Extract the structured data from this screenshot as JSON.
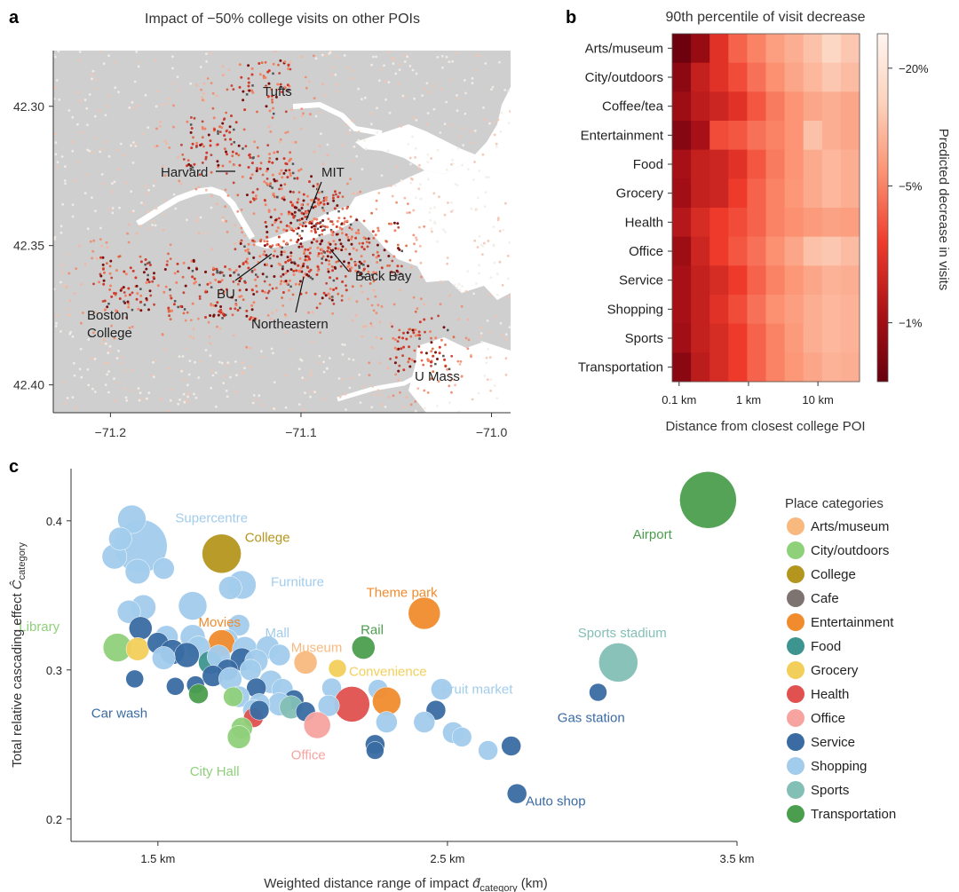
{
  "panels": {
    "a": {
      "letter": "a",
      "title": "Impact of −50% college visits on other POIs",
      "x_ticks": [
        "−71.2",
        "−71.1",
        "−71.0"
      ],
      "y_ticks": [
        "42.40",
        "42.35",
        "42.30"
      ],
      "labels": [
        "Tufts",
        "Harvard",
        "MIT",
        "BU",
        "Back Bay",
        "Northeastern",
        "Boston",
        "College",
        "U Mass"
      ]
    },
    "b": {
      "letter": "b",
      "title": "90th percentile of visit decrease",
      "xlabel": "Distance from closest college POI",
      "colorbar_label": "Predicted decrease in visits"
    },
    "c": {
      "letter": "c",
      "ylabel_main": "Total relative cascading effect ",
      "ylabel_sym": "Ĉ",
      "ylabel_sub": "category",
      "xlabel_main": "Weighted distance range of impact ",
      "xlabel_sym": "d̂",
      "xlabel_sub": "category",
      "xlabel_unit": " (km)",
      "legend_title": "Place categories"
    }
  },
  "chart_data": [
    {
      "type": "scatter",
      "panel": "a",
      "description_free": true,
      "xlim": [
        -71.23,
        -70.99
      ],
      "ylim": [
        42.29,
        42.42
      ],
      "x_ticks": [
        -71.2,
        -71.1,
        -71.0
      ],
      "y_ticks": [
        42.3,
        42.35,
        42.4
      ],
      "places": [
        {
          "name": "Tufts",
          "lon": -71.12,
          "lat": 42.407
        },
        {
          "name": "Harvard",
          "lon": -71.118,
          "lat": 42.374
        },
        {
          "name": "MIT",
          "lon": -71.093,
          "lat": 42.36
        },
        {
          "name": "BU",
          "lon": -71.105,
          "lat": 42.35
        },
        {
          "name": "Back Bay",
          "lon": -71.081,
          "lat": 42.35
        },
        {
          "name": "Northeastern",
          "lon": -71.09,
          "lat": 42.34
        },
        {
          "name": "Boston College",
          "lon": -71.168,
          "lat": 42.336
        },
        {
          "name": "U Mass",
          "lon": -71.038,
          "lat": 42.314
        }
      ]
    },
    {
      "type": "heatmap",
      "panel": "b",
      "rows": [
        "Arts/museum",
        "City/outdoors",
        "Coffee/tea",
        "Entertainment",
        "Food",
        "Grocery",
        "Health",
        "Office",
        "Service",
        "Shopping",
        "Sports",
        "Transportation"
      ],
      "x_ticks": [
        "0.1 km",
        "1 km",
        "10 km"
      ],
      "x_tick_log10": [
        -1,
        0,
        1
      ],
      "x_log_range": [
        -1.1,
        1.6
      ],
      "scale": "log",
      "colorbar_ticks": [
        "−1%",
        "−5%",
        "−20%"
      ],
      "colorbar_values": [
        1,
        5,
        20
      ],
      "colorbar_range": [
        0.5,
        30
      ],
      "values": [
        [
          28,
          17,
          7,
          4,
          3,
          2.2,
          1.8,
          1.4,
          1.0,
          1.3
        ],
        [
          19,
          10,
          7,
          5,
          3.5,
          2.6,
          2.0,
          1.6,
          1.3,
          1.5
        ],
        [
          16,
          11,
          9,
          7,
          4.5,
          3.2,
          2.5,
          2.0,
          1.8,
          2.0
        ],
        [
          21,
          14,
          5,
          4.5,
          3.5,
          3.0,
          2.5,
          1.4,
          1.8,
          2.0
        ],
        [
          14,
          10,
          9,
          7,
          4.5,
          3.2,
          2.5,
          1.9,
          1.6,
          1.8
        ],
        [
          15,
          10,
          9,
          6,
          4,
          3.0,
          2.4,
          1.9,
          1.6,
          1.8
        ],
        [
          12,
          8,
          6,
          5,
          4,
          3.0,
          2.6,
          2.3,
          2.1,
          2.2
        ],
        [
          16,
          9,
          6,
          4.5,
          3.5,
          2.6,
          2.0,
          1.4,
          1.3,
          1.5
        ],
        [
          14,
          10,
          8,
          6,
          4,
          3.0,
          2.4,
          2.0,
          1.7,
          1.8
        ],
        [
          14,
          10,
          7,
          5,
          3.5,
          2.6,
          2.2,
          1.8,
          1.6,
          1.7
        ],
        [
          15,
          10,
          8,
          6,
          4,
          3.0,
          2.3,
          1.8,
          1.6,
          1.7
        ],
        [
          20,
          11,
          8,
          6,
          4,
          3.0,
          2.4,
          2.0,
          1.7,
          1.8
        ]
      ]
    },
    {
      "type": "scatter",
      "panel": "c",
      "xlim": [
        1.2,
        3.5
      ],
      "ylim": [
        0.185,
        0.435
      ],
      "x_ticks": [
        1.5,
        2.5,
        3.5
      ],
      "x_tick_labels": [
        "1.5 km",
        "2.5 km",
        "3.5 km"
      ],
      "y_ticks": [
        0.2,
        0.3,
        0.4
      ],
      "y_tick_labels": [
        "0.2",
        "0.3",
        "0.4"
      ],
      "categories": [
        {
          "name": "Arts/museum",
          "color": "#F8B87E"
        },
        {
          "name": "City/outdoors",
          "color": "#8FD07A"
        },
        {
          "name": "College",
          "color": "#B4961E"
        },
        {
          "name": "Cafe",
          "color": "#7D7370"
        },
        {
          "name": "Entertainment",
          "color": "#F08C2E"
        },
        {
          "name": "Food",
          "color": "#3E958F"
        },
        {
          "name": "Grocery",
          "color": "#F2CF5A"
        },
        {
          "name": "Health",
          "color": "#E0514F"
        },
        {
          "name": "Office",
          "color": "#F7A3A0"
        },
        {
          "name": "Service",
          "color": "#3A6BA3"
        },
        {
          "name": "Shopping",
          "color": "#A2CCEC"
        },
        {
          "name": "Sports",
          "color": "#83BFB5"
        },
        {
          "name": "Transportation",
          "color": "#4B9E4D"
        }
      ],
      "labels": [
        {
          "text": "Supercentre",
          "x": 1.56,
          "y": 0.402,
          "color": "#A2CCEC"
        },
        {
          "text": "College",
          "x": 1.8,
          "y": 0.389,
          "color": "#B4961E"
        },
        {
          "text": "Furniture",
          "x": 1.89,
          "y": 0.359,
          "color": "#A2CCEC"
        },
        {
          "text": "Theme park",
          "x": 2.22,
          "y": 0.352,
          "color": "#F08C2E"
        },
        {
          "text": "Airport",
          "x": 3.14,
          "y": 0.391,
          "color": "#4B9E4D"
        },
        {
          "text": "Library",
          "x": 1.02,
          "y": 0.329,
          "color": "#8FD07A"
        },
        {
          "text": "Movies",
          "x": 1.64,
          "y": 0.332,
          "color": "#F08C2E"
        },
        {
          "text": "Rail",
          "x": 2.2,
          "y": 0.327,
          "color": "#4B9E4D"
        },
        {
          "text": "Sports stadium",
          "x": 2.95,
          "y": 0.325,
          "color": "#83BFB5"
        },
        {
          "text": "Mall",
          "x": 1.87,
          "y": 0.325,
          "color": "#A2CCEC"
        },
        {
          "text": "Museum",
          "x": 1.96,
          "y": 0.315,
          "color": "#F8B87E"
        },
        {
          "text": "Convenience",
          "x": 2.16,
          "y": 0.299,
          "color": "#F2CF5A"
        },
        {
          "text": "Fruit market",
          "x": 2.48,
          "y": 0.287,
          "color": "#A2CCEC"
        },
        {
          "text": "Car wash",
          "x": 1.27,
          "y": 0.271,
          "color": "#3A6BA3"
        },
        {
          "text": "Gas station",
          "x": 2.88,
          "y": 0.268,
          "color": "#3A6BA3"
        },
        {
          "text": "Office",
          "x": 1.96,
          "y": 0.243,
          "color": "#F7A3A0"
        },
        {
          "text": "City Hall",
          "x": 1.61,
          "y": 0.232,
          "color": "#8FD07A"
        },
        {
          "text": "Auto shop",
          "x": 2.77,
          "y": 0.212,
          "color": "#3A6BA3"
        }
      ],
      "points": [
        {
          "c": "Shopping",
          "x": 1.44,
          "y": 0.383,
          "r": 30
        },
        {
          "c": "Shopping",
          "x": 1.35,
          "y": 0.376,
          "r": 14
        },
        {
          "c": "Shopping",
          "x": 1.41,
          "y": 0.401,
          "r": 16
        },
        {
          "c": "Shopping",
          "x": 1.43,
          "y": 0.366,
          "r": 14
        },
        {
          "c": "Shopping",
          "x": 1.52,
          "y": 0.368,
          "r": 12
        },
        {
          "c": "Shopping",
          "x": 1.37,
          "y": 0.388,
          "r": 13
        },
        {
          "c": "College",
          "x": 1.72,
          "y": 0.378,
          "r": 22
        },
        {
          "c": "Transportation",
          "x": 3.4,
          "y": 0.414,
          "r": 32
        },
        {
          "c": "Shopping",
          "x": 1.79,
          "y": 0.357,
          "r": 16
        },
        {
          "c": "Shopping",
          "x": 1.75,
          "y": 0.355,
          "r": 13
        },
        {
          "c": "Shopping",
          "x": 1.62,
          "y": 0.343,
          "r": 16
        },
        {
          "c": "Shopping",
          "x": 1.45,
          "y": 0.342,
          "r": 14
        },
        {
          "c": "Shopping",
          "x": 1.4,
          "y": 0.339,
          "r": 13
        },
        {
          "c": "Entertainment",
          "x": 2.42,
          "y": 0.338,
          "r": 18
        },
        {
          "c": "Shopping",
          "x": 1.78,
          "y": 0.33,
          "r": 12
        },
        {
          "c": "Service",
          "x": 1.44,
          "y": 0.328,
          "r": 13
        },
        {
          "c": "Shopping",
          "x": 1.53,
          "y": 0.322,
          "r": 13
        },
        {
          "c": "Shopping",
          "x": 1.62,
          "y": 0.322,
          "r": 14
        },
        {
          "c": "Shopping",
          "x": 1.74,
          "y": 0.32,
          "r": 12
        },
        {
          "c": "Entertainment",
          "x": 1.72,
          "y": 0.318,
          "r": 15
        },
        {
          "c": "City/outdoors",
          "x": 1.36,
          "y": 0.315,
          "r": 16
        },
        {
          "c": "Grocery",
          "x": 1.43,
          "y": 0.314,
          "r": 13
        },
        {
          "c": "Service",
          "x": 1.5,
          "y": 0.318,
          "r": 12
        },
        {
          "c": "Shopping",
          "x": 1.64,
          "y": 0.315,
          "r": 13
        },
        {
          "c": "Shopping",
          "x": 1.8,
          "y": 0.314,
          "r": 14
        },
        {
          "c": "Shopping",
          "x": 1.88,
          "y": 0.315,
          "r": 13
        },
        {
          "c": "Service",
          "x": 1.55,
          "y": 0.312,
          "r": 14
        },
        {
          "c": "Service",
          "x": 1.6,
          "y": 0.31,
          "r": 14
        },
        {
          "c": "Transportation",
          "x": 2.21,
          "y": 0.315,
          "r": 13
        },
        {
          "c": "Shopping",
          "x": 1.52,
          "y": 0.308,
          "r": 13
        },
        {
          "c": "Food",
          "x": 1.68,
          "y": 0.305,
          "r": 13
        },
        {
          "c": "Shopping",
          "x": 1.71,
          "y": 0.309,
          "r": 13
        },
        {
          "c": "Service",
          "x": 1.79,
          "y": 0.307,
          "r": 13
        },
        {
          "c": "Shopping",
          "x": 1.84,
          "y": 0.306,
          "r": 13
        },
        {
          "c": "Shopping",
          "x": 1.92,
          "y": 0.31,
          "r": 12
        },
        {
          "c": "Arts/museum",
          "x": 2.01,
          "y": 0.305,
          "r": 13
        },
        {
          "c": "Grocery",
          "x": 2.12,
          "y": 0.301,
          "r": 10
        },
        {
          "c": "Service",
          "x": 1.74,
          "y": 0.3,
          "r": 12
        },
        {
          "c": "Shopping",
          "x": 1.82,
          "y": 0.3,
          "r": 12
        },
        {
          "c": "Service",
          "x": 1.69,
          "y": 0.296,
          "r": 12
        },
        {
          "c": "Shopping",
          "x": 1.75,
          "y": 0.294,
          "r": 13
        },
        {
          "c": "Service",
          "x": 1.42,
          "y": 0.294,
          "r": 10
        },
        {
          "c": "Service",
          "x": 1.63,
          "y": 0.29,
          "r": 10
        },
        {
          "c": "Shopping",
          "x": 1.89,
          "y": 0.292,
          "r": 13
        },
        {
          "c": "Shopping",
          "x": 1.93,
          "y": 0.287,
          "r": 12
        },
        {
          "c": "Service",
          "x": 1.84,
          "y": 0.288,
          "r": 11
        },
        {
          "c": "Shopping",
          "x": 2.1,
          "y": 0.288,
          "r": 11
        },
        {
          "c": "Shopping",
          "x": 2.26,
          "y": 0.287,
          "r": 11
        },
        {
          "c": "Shopping",
          "x": 2.48,
          "y": 0.287,
          "r": 12
        },
        {
          "c": "Service",
          "x": 1.56,
          "y": 0.289,
          "r": 10
        },
        {
          "c": "Service",
          "x": 3.02,
          "y": 0.285,
          "r": 10
        },
        {
          "c": "Sports",
          "x": 3.09,
          "y": 0.305,
          "r": 22
        },
        {
          "c": "Transportation",
          "x": 1.64,
          "y": 0.284,
          "r": 11
        },
        {
          "c": "Shopping",
          "x": 1.78,
          "y": 0.282,
          "r": 12
        },
        {
          "c": "City/outdoors",
          "x": 1.76,
          "y": 0.282,
          "r": 11
        },
        {
          "c": "Service",
          "x": 1.97,
          "y": 0.28,
          "r": 11
        },
        {
          "c": "Entertainment",
          "x": 2.29,
          "y": 0.279,
          "r": 16
        },
        {
          "c": "Shopping",
          "x": 1.92,
          "y": 0.277,
          "r": 13
        },
        {
          "c": "Shopping",
          "x": 1.85,
          "y": 0.277,
          "r": 12
        },
        {
          "c": "Health",
          "x": 2.17,
          "y": 0.277,
          "r": 20
        },
        {
          "c": "Shopping",
          "x": 2.09,
          "y": 0.276,
          "r": 12
        },
        {
          "c": "Shopping",
          "x": 1.83,
          "y": 0.273,
          "r": 12
        },
        {
          "c": "Sports",
          "x": 1.96,
          "y": 0.275,
          "r": 13
        },
        {
          "c": "Service",
          "x": 2.01,
          "y": 0.272,
          "r": 11
        },
        {
          "c": "Service",
          "x": 2.46,
          "y": 0.273,
          "r": 11
        },
        {
          "c": "Health",
          "x": 1.83,
          "y": 0.268,
          "r": 11
        },
        {
          "c": "Service",
          "x": 1.85,
          "y": 0.273,
          "r": 11
        },
        {
          "c": "Office",
          "x": 2.05,
          "y": 0.263,
          "r": 15
        },
        {
          "c": "Shopping",
          "x": 2.29,
          "y": 0.265,
          "r": 12
        },
        {
          "c": "Shopping",
          "x": 2.42,
          "y": 0.265,
          "r": 12
        },
        {
          "c": "City/outdoors",
          "x": 1.79,
          "y": 0.261,
          "r": 12
        },
        {
          "c": "City/outdoors",
          "x": 1.78,
          "y": 0.255,
          "r": 13
        },
        {
          "c": "Shopping",
          "x": 2.52,
          "y": 0.258,
          "r": 12
        },
        {
          "c": "Shopping",
          "x": 2.55,
          "y": 0.255,
          "r": 11
        },
        {
          "c": "Service",
          "x": 2.25,
          "y": 0.25,
          "r": 11
        },
        {
          "c": "Service",
          "x": 2.25,
          "y": 0.246,
          "r": 10
        },
        {
          "c": "Shopping",
          "x": 2.64,
          "y": 0.246,
          "r": 11
        },
        {
          "c": "Service",
          "x": 2.72,
          "y": 0.249,
          "r": 11
        },
        {
          "c": "Service",
          "x": 2.74,
          "y": 0.217,
          "r": 11
        }
      ]
    }
  ]
}
